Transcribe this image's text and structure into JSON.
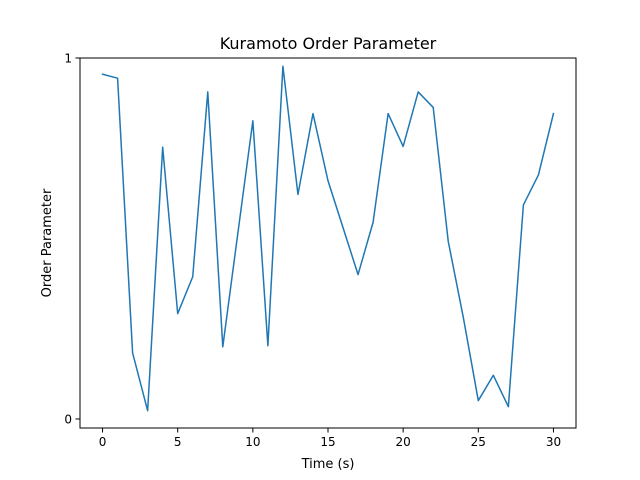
{
  "chart_data": {
    "type": "line",
    "title": "Kuramoto Order Parameter",
    "xlabel": "Time (s)",
    "ylabel": "Order Parameter",
    "xlim": [
      -1.5,
      31.5
    ],
    "ylim": [
      -0.025,
      1.0
    ],
    "xticks": [
      0,
      5,
      10,
      15,
      20,
      25,
      30
    ],
    "yticks": [
      0,
      1
    ],
    "grid": false,
    "line_color": "#1f77b4",
    "series": [
      {
        "x": [
          0,
          1,
          2,
          3,
          4,
          5,
          6,
          7,
          8,
          9,
          10,
          11,
          12,
          13,
          14,
          15,
          16,
          17,
          18,
          19,
          20,
          21,
          22,
          23,
          24,
          25,
          26,
          27,
          28,
          29,
          30
        ],
        "y": [
          0.955,
          0.944,
          0.183,
          0.023,
          0.753,
          0.292,
          0.394,
          0.906,
          0.2,
          0.514,
          0.826,
          0.203,
          0.977,
          0.622,
          0.846,
          0.66,
          0.53,
          0.4,
          0.545,
          0.846,
          0.755,
          0.906,
          0.863,
          0.492,
          0.282,
          0.051,
          0.121,
          0.034,
          0.593,
          0.676,
          0.846
        ]
      }
    ]
  }
}
